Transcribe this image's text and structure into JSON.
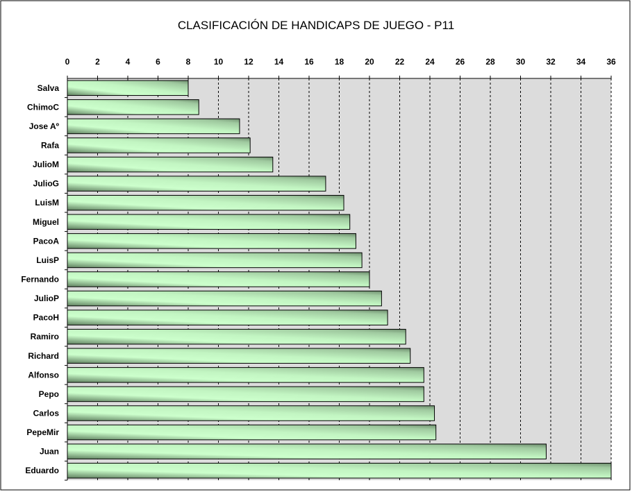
{
  "chart_data": {
    "type": "bar",
    "orientation": "horizontal",
    "title": "CLASIFICACIÓN DE HANDICAPS DE JUEGO - P11",
    "xlabel": "",
    "ylabel": "",
    "xlim": [
      0,
      36
    ],
    "xticks": [
      "0",
      "2",
      "4",
      "6",
      "8",
      "10",
      "12",
      "14",
      "16",
      "18",
      "20",
      "22",
      "24",
      "26",
      "28",
      "30",
      "32",
      "34",
      "36"
    ],
    "xaxis_position": "top",
    "grid": true,
    "categories": [
      "Salva",
      "ChimoC",
      "Jose Aº",
      "Rafa",
      "JulioM",
      "JulioG",
      "LuisM",
      "Miguel",
      "PacoA",
      "LuisP",
      "Fernando",
      "JulioP",
      "PacoH",
      "Ramiro",
      "Richard",
      "Alfonso",
      "Pepo",
      "Carlos",
      "PepeMir",
      "Juan",
      "Eduardo"
    ],
    "values": [
      8.0,
      8.7,
      11.4,
      12.1,
      13.6,
      17.1,
      18.3,
      18.7,
      19.1,
      19.5,
      20.0,
      20.8,
      21.2,
      22.4,
      22.7,
      23.6,
      23.6,
      24.3,
      24.4,
      31.7,
      36.0
    ],
    "colors": {
      "bar_light": "#ccffcc",
      "bar_dark": "#5f7f5f",
      "plot_bg": "#dcdcdc"
    }
  }
}
